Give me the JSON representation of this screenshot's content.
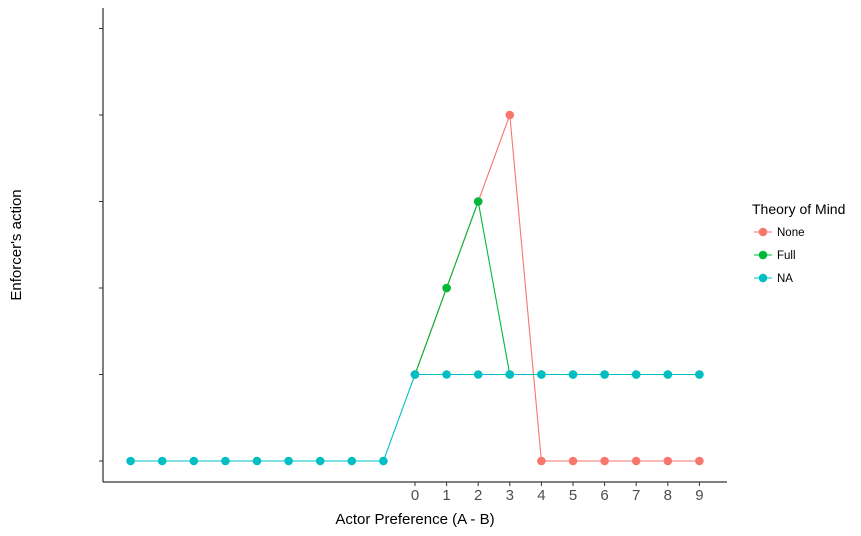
{
  "chart_data": {
    "type": "line",
    "title": "",
    "xlabel": "Actor Preference (A - B)",
    "ylabel": "Enforcer's action",
    "x_tick_labels": [
      "0",
      "1",
      "2",
      "3",
      "4",
      "5",
      "6",
      "7",
      "8",
      "9"
    ],
    "y_ticks_labeled": false,
    "xlim": [
      -10,
      9
    ],
    "ylim": [
      0,
      4
    ],
    "grid": false,
    "legend": {
      "title": "Theory of Mind",
      "position": "right"
    },
    "series": [
      {
        "name": "None",
        "color": "#F8766D",
        "points": [
          [
            0,
            1
          ],
          [
            1,
            2
          ],
          [
            2,
            3
          ],
          [
            3,
            4
          ],
          [
            4,
            0
          ],
          [
            5,
            0
          ],
          [
            6,
            0
          ],
          [
            7,
            0
          ],
          [
            8,
            0
          ],
          [
            9,
            0
          ]
        ]
      },
      {
        "name": "Full",
        "color": "#00BA38",
        "points": [
          [
            0,
            1
          ],
          [
            1,
            2
          ],
          [
            2,
            3
          ],
          [
            3,
            1
          ],
          [
            4,
            1
          ],
          [
            5,
            1
          ],
          [
            6,
            1
          ],
          [
            7,
            1
          ],
          [
            8,
            1
          ],
          [
            9,
            1
          ]
        ]
      },
      {
        "name": "NA",
        "color": "#00BFC4",
        "points": [
          [
            -9,
            0
          ],
          [
            -8,
            0
          ],
          [
            -7,
            0
          ],
          [
            -6,
            0
          ],
          [
            -5,
            0
          ],
          [
            -4,
            0
          ],
          [
            -3,
            0
          ],
          [
            -2,
            0
          ],
          [
            -1,
            0
          ],
          [
            0,
            1
          ],
          [
            1,
            1
          ],
          [
            2,
            1
          ],
          [
            3,
            1
          ],
          [
            4,
            1
          ],
          [
            5,
            1
          ],
          [
            6,
            1
          ],
          [
            7,
            1
          ],
          [
            8,
            1
          ],
          [
            9,
            1
          ]
        ]
      }
    ]
  }
}
